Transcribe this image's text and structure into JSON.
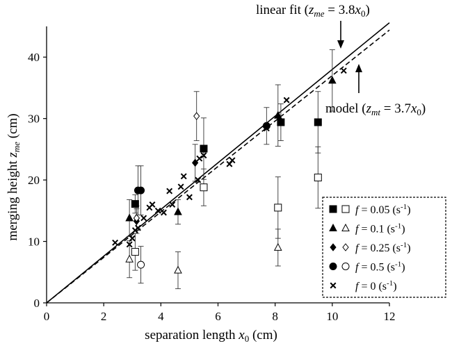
{
  "chart_data": {
    "type": "scatter",
    "xlim": [
      0,
      12
    ],
    "ylim": [
      0,
      45
    ],
    "xticks": [
      "0",
      "2",
      "4",
      "6",
      "8",
      "10",
      "12"
    ],
    "yticks": [
      "0",
      "10",
      "20",
      "30",
      "40"
    ],
    "grid": false,
    "xlabel": {
      "base": "separation length ",
      "var": "x",
      "sub": "0",
      "unit": " (cm)"
    },
    "ylabel": {
      "base": "merging height ",
      "var": "z",
      "sub": "me",
      "unit": " (cm)"
    },
    "legend_position": "bottom-right",
    "legend": [
      {
        "f": "0.05",
        "unit": "(s",
        "exp": "-1",
        "close": ")",
        "markers": [
          "square-filled",
          "square-open"
        ]
      },
      {
        "f": "0.1",
        "unit": "(s",
        "exp": "-1",
        "close": ")",
        "markers": [
          "triangle-filled",
          "triangle-open"
        ]
      },
      {
        "f": "0.25",
        "unit": "(s",
        "exp": "-1",
        "close": ")",
        "markers": [
          "diamond-filled",
          "diamond-open"
        ]
      },
      {
        "f": "0.5",
        "unit": "(s",
        "exp": "-1",
        "close": ")",
        "markers": [
          "circle-filled",
          "circle-open"
        ]
      },
      {
        "f": "0",
        "unit": "(s",
        "exp": "-1",
        "close": ")",
        "markers": [
          "cross"
        ]
      }
    ],
    "lines": [
      {
        "style": "solid",
        "slope": 3.8,
        "x_range": [
          0,
          12
        ]
      },
      {
        "style": "dashed",
        "slope": 3.7,
        "x_range": [
          0,
          12
        ]
      }
    ],
    "annotations": [
      {
        "pre": "linear fit (",
        "var": "z",
        "sub": "me",
        "mid": " = 3.8",
        "xvar": "x",
        "xsub": "0",
        "post": ")"
      },
      {
        "pre": "model (",
        "var": "z",
        "sub": "mt",
        "mid": " = 3.7",
        "xvar": "x",
        "xsub": "0",
        "post": ")"
      }
    ],
    "series": [
      {
        "marker": "square-filled",
        "points": [
          [
            3.1,
            16.1,
            1.5
          ],
          [
            5.5,
            25.1,
            5.0
          ],
          [
            8.2,
            29.4,
            3.0
          ],
          [
            9.5,
            29.4,
            5.0
          ]
        ]
      },
      {
        "marker": "square-open",
        "points": [
          [
            3.1,
            8.3,
            3.0
          ],
          [
            5.5,
            18.8,
            3.0
          ],
          [
            8.1,
            15.5,
            5.0
          ],
          [
            9.5,
            20.4,
            5.0
          ]
        ]
      },
      {
        "marker": "triangle-filled",
        "points": [
          [
            2.9,
            13.8,
            3.0
          ],
          [
            4.6,
            14.8,
            2.0
          ],
          [
            8.1,
            30.5,
            5.0
          ],
          [
            10.0,
            36.2,
            5.0
          ]
        ]
      },
      {
        "marker": "triangle-open",
        "points": [
          [
            2.9,
            7.1,
            3.0
          ],
          [
            4.6,
            5.3,
            3.0
          ],
          [
            8.1,
            9.0,
            3.0
          ]
        ]
      },
      {
        "marker": "diamond-filled",
        "points": [
          [
            3.15,
            13.3,
            2.0
          ],
          [
            5.2,
            22.8,
            3.0
          ]
        ]
      },
      {
        "marker": "diamond-open",
        "points": [
          [
            3.15,
            13.8,
            2.0
          ],
          [
            5.25,
            30.4,
            4.0
          ]
        ]
      },
      {
        "marker": "circle-filled",
        "points": [
          [
            3.2,
            18.3,
            4.0
          ],
          [
            3.3,
            18.3,
            4.0
          ],
          [
            7.7,
            28.8,
            3.0
          ]
        ]
      },
      {
        "marker": "circle-open",
        "points": [
          [
            3.3,
            6.2,
            3.0
          ]
        ]
      },
      {
        "marker": "cross",
        "points": [
          [
            2.4,
            9.8
          ],
          [
            2.9,
            9.5
          ],
          [
            3.0,
            10.5
          ],
          [
            3.1,
            11.8
          ],
          [
            3.2,
            12.2
          ],
          [
            3.4,
            13.8
          ],
          [
            3.7,
            16.0
          ],
          [
            3.6,
            15.5
          ],
          [
            3.9,
            15.0
          ],
          [
            4.1,
            14.7
          ],
          [
            4.3,
            18.2
          ],
          [
            4.4,
            16.0
          ],
          [
            4.7,
            18.9
          ],
          [
            4.8,
            20.6
          ],
          [
            5.0,
            17.2
          ],
          [
            5.3,
            20.0
          ],
          [
            5.35,
            23.5
          ],
          [
            5.5,
            24.0
          ],
          [
            6.4,
            22.6
          ],
          [
            6.5,
            23.2
          ],
          [
            7.7,
            28.4
          ],
          [
            8.4,
            33.0
          ],
          [
            10.4,
            37.8
          ]
        ]
      }
    ]
  }
}
